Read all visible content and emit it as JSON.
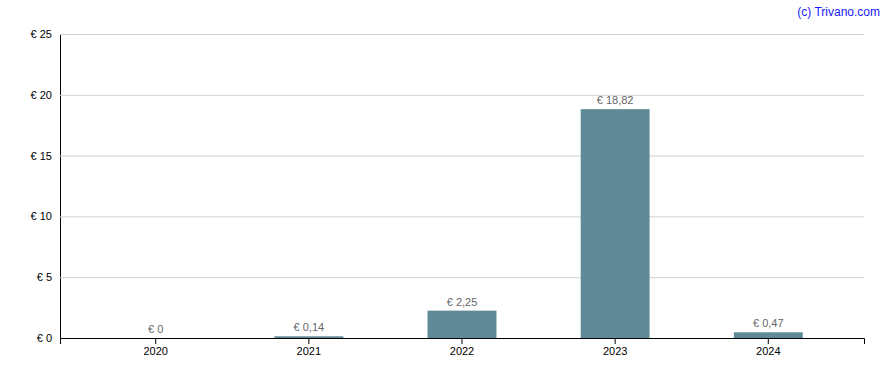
{
  "chart_data": {
    "type": "bar",
    "categories": [
      "2020",
      "2021",
      "2022",
      "2023",
      "2024"
    ],
    "values": [
      0.0,
      0.14,
      2.25,
      18.82,
      0.47
    ],
    "value_labels": [
      "€ 0",
      "€ 0,14",
      "€ 2,25",
      "€ 18,82",
      "€ 0,47"
    ],
    "data_labels": true,
    "color": "#5f8a96",
    "ylim": [
      0,
      25
    ],
    "yticks": [
      {
        "value": 0,
        "label": "€ 0"
      },
      {
        "value": 5,
        "label": "€ 5"
      },
      {
        "value": 10,
        "label": "€ 10"
      },
      {
        "value": 15,
        "label": "€ 15"
      },
      {
        "value": 20,
        "label": "€ 20"
      },
      {
        "value": 25,
        "label": "€ 25"
      }
    ],
    "grid": true,
    "annotations": [
      "(c) Trivano.com"
    ]
  }
}
